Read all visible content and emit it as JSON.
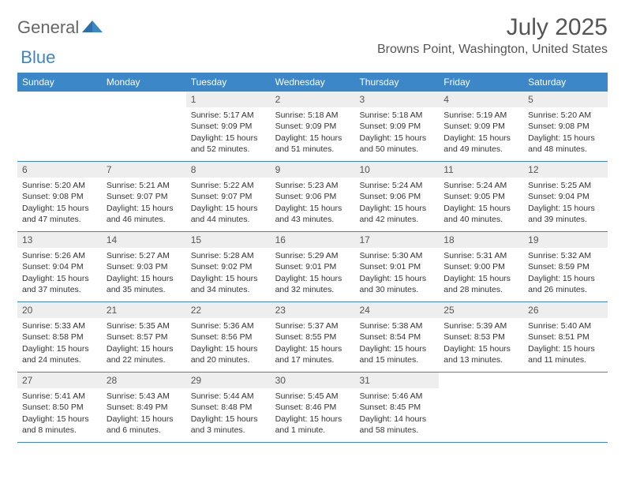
{
  "logo": {
    "text_general": "General",
    "text_blue": "Blue"
  },
  "title": "July 2025",
  "location": "Browns Point, Washington, United States",
  "colors": {
    "header_bg": "#3b87c8",
    "header_text": "#ffffff",
    "daynum_bg": "#eeeeee",
    "daynum_text": "#555555",
    "body_text": "#333333",
    "rule": "#3b87c8",
    "page_bg": "#ffffff"
  },
  "font": {
    "family": "Arial",
    "weekday_size_pt": 9,
    "body_size_pt": 8,
    "title_size_pt": 22,
    "location_size_pt": 12
  },
  "weekdays": [
    "Sunday",
    "Monday",
    "Tuesday",
    "Wednesday",
    "Thursday",
    "Friday",
    "Saturday"
  ],
  "weeks": [
    [
      {
        "n": "",
        "sunrise": "",
        "sunset": "",
        "daylight": ""
      },
      {
        "n": "",
        "sunrise": "",
        "sunset": "",
        "daylight": ""
      },
      {
        "n": "1",
        "sunrise": "Sunrise: 5:17 AM",
        "sunset": "Sunset: 9:09 PM",
        "daylight": "Daylight: 15 hours and 52 minutes."
      },
      {
        "n": "2",
        "sunrise": "Sunrise: 5:18 AM",
        "sunset": "Sunset: 9:09 PM",
        "daylight": "Daylight: 15 hours and 51 minutes."
      },
      {
        "n": "3",
        "sunrise": "Sunrise: 5:18 AM",
        "sunset": "Sunset: 9:09 PM",
        "daylight": "Daylight: 15 hours and 50 minutes."
      },
      {
        "n": "4",
        "sunrise": "Sunrise: 5:19 AM",
        "sunset": "Sunset: 9:09 PM",
        "daylight": "Daylight: 15 hours and 49 minutes."
      },
      {
        "n": "5",
        "sunrise": "Sunrise: 5:20 AM",
        "sunset": "Sunset: 9:08 PM",
        "daylight": "Daylight: 15 hours and 48 minutes."
      }
    ],
    [
      {
        "n": "6",
        "sunrise": "Sunrise: 5:20 AM",
        "sunset": "Sunset: 9:08 PM",
        "daylight": "Daylight: 15 hours and 47 minutes."
      },
      {
        "n": "7",
        "sunrise": "Sunrise: 5:21 AM",
        "sunset": "Sunset: 9:07 PM",
        "daylight": "Daylight: 15 hours and 46 minutes."
      },
      {
        "n": "8",
        "sunrise": "Sunrise: 5:22 AM",
        "sunset": "Sunset: 9:07 PM",
        "daylight": "Daylight: 15 hours and 44 minutes."
      },
      {
        "n": "9",
        "sunrise": "Sunrise: 5:23 AM",
        "sunset": "Sunset: 9:06 PM",
        "daylight": "Daylight: 15 hours and 43 minutes."
      },
      {
        "n": "10",
        "sunrise": "Sunrise: 5:24 AM",
        "sunset": "Sunset: 9:06 PM",
        "daylight": "Daylight: 15 hours and 42 minutes."
      },
      {
        "n": "11",
        "sunrise": "Sunrise: 5:24 AM",
        "sunset": "Sunset: 9:05 PM",
        "daylight": "Daylight: 15 hours and 40 minutes."
      },
      {
        "n": "12",
        "sunrise": "Sunrise: 5:25 AM",
        "sunset": "Sunset: 9:04 PM",
        "daylight": "Daylight: 15 hours and 39 minutes."
      }
    ],
    [
      {
        "n": "13",
        "sunrise": "Sunrise: 5:26 AM",
        "sunset": "Sunset: 9:04 PM",
        "daylight": "Daylight: 15 hours and 37 minutes."
      },
      {
        "n": "14",
        "sunrise": "Sunrise: 5:27 AM",
        "sunset": "Sunset: 9:03 PM",
        "daylight": "Daylight: 15 hours and 35 minutes."
      },
      {
        "n": "15",
        "sunrise": "Sunrise: 5:28 AM",
        "sunset": "Sunset: 9:02 PM",
        "daylight": "Daylight: 15 hours and 34 minutes."
      },
      {
        "n": "16",
        "sunrise": "Sunrise: 5:29 AM",
        "sunset": "Sunset: 9:01 PM",
        "daylight": "Daylight: 15 hours and 32 minutes."
      },
      {
        "n": "17",
        "sunrise": "Sunrise: 5:30 AM",
        "sunset": "Sunset: 9:01 PM",
        "daylight": "Daylight: 15 hours and 30 minutes."
      },
      {
        "n": "18",
        "sunrise": "Sunrise: 5:31 AM",
        "sunset": "Sunset: 9:00 PM",
        "daylight": "Daylight: 15 hours and 28 minutes."
      },
      {
        "n": "19",
        "sunrise": "Sunrise: 5:32 AM",
        "sunset": "Sunset: 8:59 PM",
        "daylight": "Daylight: 15 hours and 26 minutes."
      }
    ],
    [
      {
        "n": "20",
        "sunrise": "Sunrise: 5:33 AM",
        "sunset": "Sunset: 8:58 PM",
        "daylight": "Daylight: 15 hours and 24 minutes."
      },
      {
        "n": "21",
        "sunrise": "Sunrise: 5:35 AM",
        "sunset": "Sunset: 8:57 PM",
        "daylight": "Daylight: 15 hours and 22 minutes."
      },
      {
        "n": "22",
        "sunrise": "Sunrise: 5:36 AM",
        "sunset": "Sunset: 8:56 PM",
        "daylight": "Daylight: 15 hours and 20 minutes."
      },
      {
        "n": "23",
        "sunrise": "Sunrise: 5:37 AM",
        "sunset": "Sunset: 8:55 PM",
        "daylight": "Daylight: 15 hours and 17 minutes."
      },
      {
        "n": "24",
        "sunrise": "Sunrise: 5:38 AM",
        "sunset": "Sunset: 8:54 PM",
        "daylight": "Daylight: 15 hours and 15 minutes."
      },
      {
        "n": "25",
        "sunrise": "Sunrise: 5:39 AM",
        "sunset": "Sunset: 8:53 PM",
        "daylight": "Daylight: 15 hours and 13 minutes."
      },
      {
        "n": "26",
        "sunrise": "Sunrise: 5:40 AM",
        "sunset": "Sunset: 8:51 PM",
        "daylight": "Daylight: 15 hours and 11 minutes."
      }
    ],
    [
      {
        "n": "27",
        "sunrise": "Sunrise: 5:41 AM",
        "sunset": "Sunset: 8:50 PM",
        "daylight": "Daylight: 15 hours and 8 minutes."
      },
      {
        "n": "28",
        "sunrise": "Sunrise: 5:43 AM",
        "sunset": "Sunset: 8:49 PM",
        "daylight": "Daylight: 15 hours and 6 minutes."
      },
      {
        "n": "29",
        "sunrise": "Sunrise: 5:44 AM",
        "sunset": "Sunset: 8:48 PM",
        "daylight": "Daylight: 15 hours and 3 minutes."
      },
      {
        "n": "30",
        "sunrise": "Sunrise: 5:45 AM",
        "sunset": "Sunset: 8:46 PM",
        "daylight": "Daylight: 15 hours and 1 minute."
      },
      {
        "n": "31",
        "sunrise": "Sunrise: 5:46 AM",
        "sunset": "Sunset: 8:45 PM",
        "daylight": "Daylight: 14 hours and 58 minutes."
      },
      {
        "n": "",
        "sunrise": "",
        "sunset": "",
        "daylight": ""
      },
      {
        "n": "",
        "sunrise": "",
        "sunset": "",
        "daylight": ""
      }
    ]
  ]
}
